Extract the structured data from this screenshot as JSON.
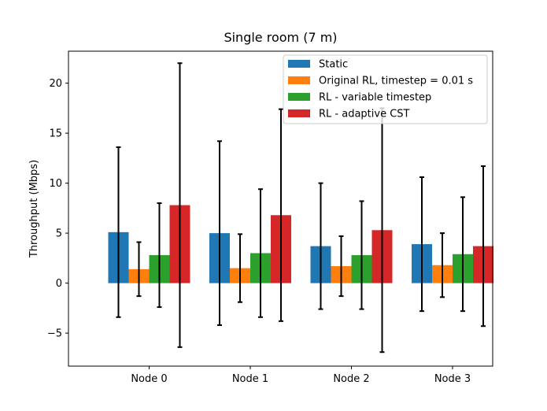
{
  "chart_data": {
    "type": "bar",
    "title": "Single room (7 m)",
    "xlabel": "",
    "ylabel": "Throughput (Mbps)",
    "categories": [
      "Node 0",
      "Node 1",
      "Node 2",
      "Node 3"
    ],
    "ylim": [
      -8.3,
      23.2
    ],
    "yticks": [
      -5,
      0,
      5,
      10,
      15,
      20
    ],
    "ytick_labels": [
      "−5",
      "0",
      "5",
      "10",
      "15",
      "20"
    ],
    "grid": false,
    "legend_position": "upper right",
    "error_bars": true,
    "series": [
      {
        "name": "Static",
        "color": "#1f77b4",
        "values": [
          5.1,
          5.0,
          3.7,
          3.9
        ],
        "errors": [
          8.5,
          9.2,
          6.3,
          6.7
        ]
      },
      {
        "name": "Original RL, timestep = 0.01 s",
        "color": "#ff7f0e",
        "values": [
          1.4,
          1.5,
          1.7,
          1.8
        ],
        "errors": [
          2.7,
          3.4,
          3.0,
          3.2
        ]
      },
      {
        "name": "RL - variable timestep",
        "color": "#2ca02c",
        "values": [
          2.8,
          3.0,
          2.8,
          2.9
        ],
        "errors": [
          5.2,
          6.4,
          5.4,
          5.7
        ]
      },
      {
        "name": "RL - adaptive CST",
        "color": "#d62728",
        "values": [
          7.8,
          6.8,
          5.3,
          3.7
        ],
        "errors": [
          14.2,
          10.6,
          12.2,
          8.0
        ]
      }
    ]
  }
}
